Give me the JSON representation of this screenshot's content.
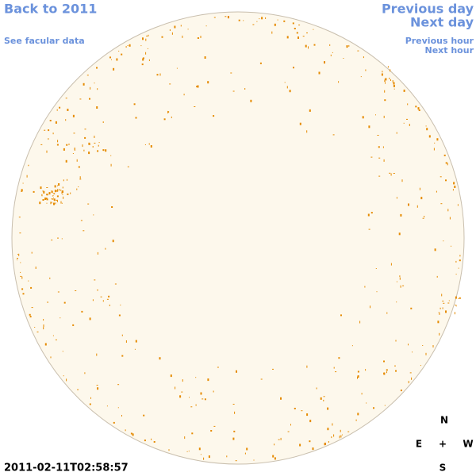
{
  "nav": {
    "back": "Back to 2011",
    "facular": "See facular data",
    "previous_day": "Previous day",
    "next_day": "Next day",
    "previous_hour": "Previous hour",
    "next_hour": "Next hour"
  },
  "timestamp": "2011-02-11T02:58:57",
  "compass": {
    "north": "N",
    "east": "E",
    "center": "+",
    "west": "W",
    "south": "S"
  }
}
